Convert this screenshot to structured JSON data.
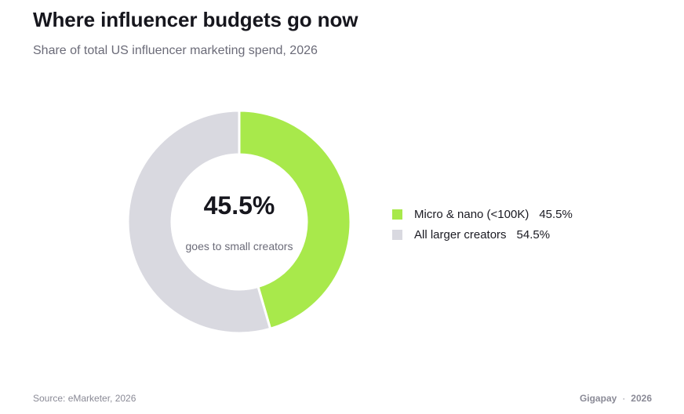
{
  "title": "Where influencer budgets go now",
  "subtitle": "Share of total US influencer marketing spend, 2026",
  "center": {
    "value": "45.5%",
    "caption": "goes to small creators"
  },
  "chart_data": {
    "type": "pie",
    "style": "donut",
    "series": [
      {
        "name": "Micro & nano (<100K)",
        "value": 45.5,
        "label": "45.5%",
        "color": "#a8e94b"
      },
      {
        "name": "All larger creators",
        "value": 54.5,
        "label": "54.5%",
        "color": "#d9d9e0"
      }
    ],
    "legend_placement": "right"
  },
  "legend": [
    {
      "label": "Micro & nano (<100K)",
      "value": "45.5%",
      "color": "#a8e94b"
    },
    {
      "label": "All larger creators",
      "value": "54.5%",
      "color": "#d9d9e0"
    }
  ],
  "footer": {
    "source": "Source: eMarketer, 2026",
    "brand": "Gigapay",
    "separator": "·",
    "year": "2026"
  }
}
